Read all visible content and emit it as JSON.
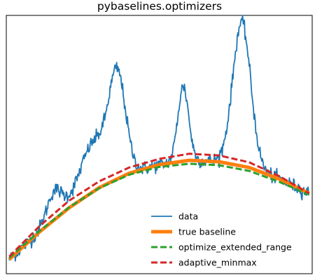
{
  "chart_data": {
    "type": "line",
    "title": "pybaselines.optimizers",
    "xlabel": "",
    "ylabel": "",
    "xlim": [
      -10,
      1010
    ],
    "ylim": [
      -0.5,
      8.5
    ],
    "grid": false,
    "axes_ticks": "hidden",
    "legend": {
      "placement": "lower-right",
      "entries": [
        "data",
        "true baseline",
        "optimize_extended_range",
        "adaptive_minmax"
      ]
    },
    "baseline_curve": {
      "x": [
        0,
        100,
        200,
        300,
        400,
        500,
        600,
        700,
        800,
        900,
        1000
      ],
      "y": [
        0.0,
        0.95,
        1.8,
        2.5,
        3.0,
        3.3,
        3.45,
        3.4,
        3.2,
        2.8,
        2.3
      ]
    },
    "peaks": [
      {
        "x": 150,
        "height": 1.0,
        "width": 25
      },
      {
        "x": 280,
        "height": 1.7,
        "width": 45
      },
      {
        "x": 360,
        "height": 3.5,
        "width": 28
      },
      {
        "x": 580,
        "height": 2.6,
        "width": 18
      },
      {
        "x": 775,
        "height": 5.0,
        "width": 30
      }
    ],
    "noise_amplitude": 0.12,
    "series": [
      {
        "name": "data",
        "color": "#1f77b4",
        "style": "solid",
        "linewidth": 1.8,
        "x": [
          0,
          1000
        ],
        "values": "baseline_curve + peaks + noise"
      },
      {
        "name": "true baseline",
        "color": "#ff7f0e",
        "style": "solid",
        "linewidth": 5,
        "x": [
          0,
          100,
          200,
          300,
          400,
          500,
          600,
          700,
          800,
          900,
          1000
        ],
        "values": [
          0.0,
          0.95,
          1.8,
          2.5,
          3.0,
          3.3,
          3.45,
          3.4,
          3.2,
          2.8,
          2.3
        ]
      },
      {
        "name": "optimize_extended_range",
        "color": "#2ca02c",
        "style": "dashed",
        "linewidth": 3,
        "x": [
          0,
          100,
          200,
          300,
          400,
          500,
          600,
          700,
          800,
          900,
          1000
        ],
        "values": [
          0.05,
          0.98,
          1.82,
          2.48,
          2.95,
          3.22,
          3.33,
          3.28,
          3.08,
          2.7,
          2.25
        ]
      },
      {
        "name": "adaptive_minmax",
        "color": "#d62728",
        "style": "dashed",
        "linewidth": 3,
        "x": [
          0,
          100,
          200,
          300,
          400,
          500,
          600,
          700,
          800,
          900,
          1000
        ],
        "values": [
          0.1,
          1.15,
          2.05,
          2.72,
          3.2,
          3.5,
          3.68,
          3.62,
          3.38,
          2.9,
          2.3
        ]
      }
    ]
  }
}
